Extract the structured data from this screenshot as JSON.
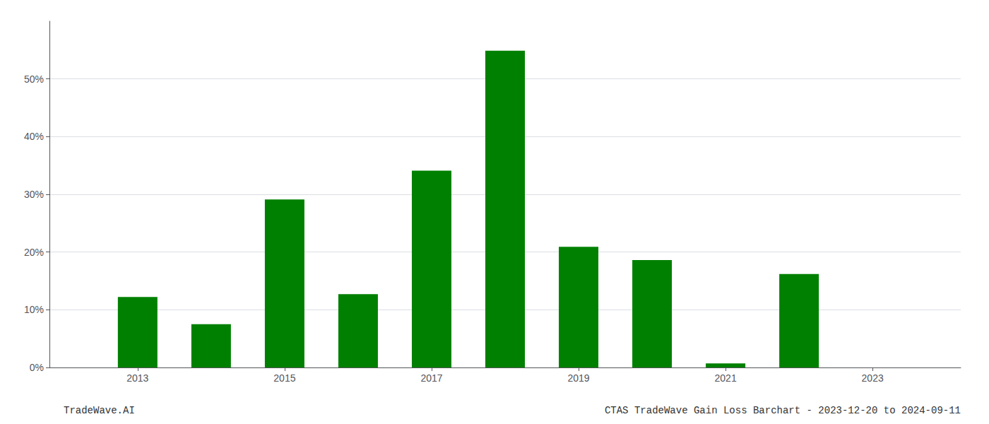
{
  "chart_data": {
    "type": "bar",
    "x": [
      2013,
      2014,
      2015,
      2016,
      2017,
      2018,
      2019,
      2020,
      2021,
      2022
    ],
    "values": [
      0.122,
      0.075,
      0.291,
      0.127,
      0.341,
      0.549,
      0.209,
      0.186,
      0.007,
      0.162
    ],
    "color": "#008000",
    "xlim": [
      2011.8,
      2024.2
    ],
    "xticks": [
      2013,
      2015,
      2017,
      2019,
      2021,
      2023
    ],
    "ylim": [
      0,
      0.6
    ],
    "yticks": [
      {
        "value": 0.0,
        "label": "0%"
      },
      {
        "value": 0.1,
        "label": "10%"
      },
      {
        "value": 0.2,
        "label": "20%"
      },
      {
        "value": 0.3,
        "label": "30%"
      },
      {
        "value": 0.4,
        "label": "40%"
      },
      {
        "value": 0.5,
        "label": "50%"
      }
    ],
    "grid": true,
    "annotations": [
      "TradeWave.AI",
      "CTAS TradeWave Gain Loss Barchart - 2023-12-20 to 2024-09-11"
    ]
  }
}
